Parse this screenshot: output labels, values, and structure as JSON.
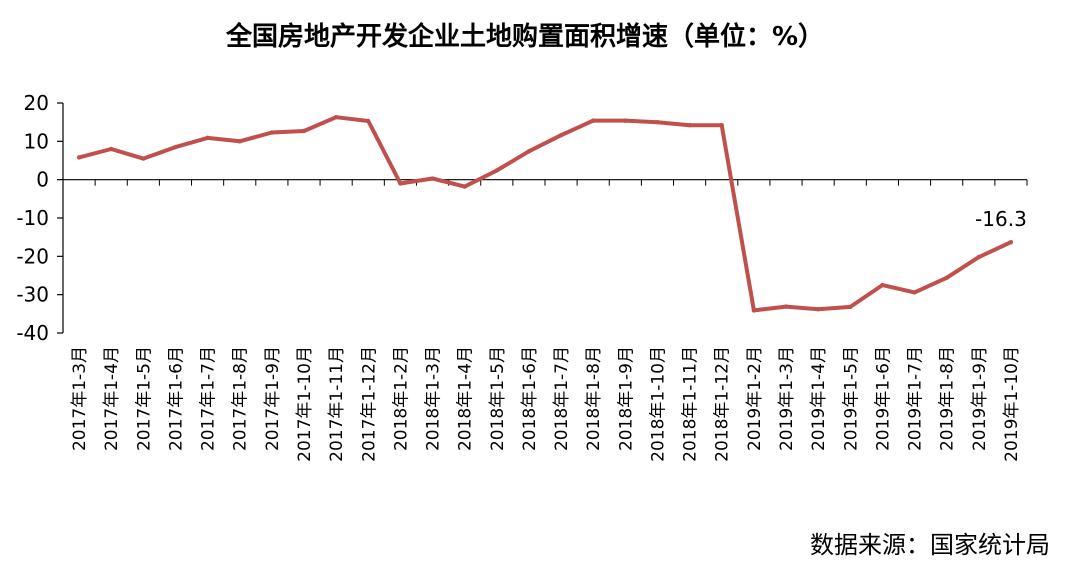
{
  "chart_data": {
    "type": "line",
    "title": "全国房地产开发企业土地购置面积增速（单位：%）",
    "xlabel": "",
    "ylabel": "",
    "ylim": [
      -40,
      20
    ],
    "yticks": [
      "20",
      "10",
      "0",
      "-10",
      "-20",
      "-30",
      "-40"
    ],
    "grid": false,
    "legend": "none",
    "categories": [
      "2017年1-3月",
      "2017年1-4月",
      "2017年1-5月",
      "2017年1-6月",
      "2017年1-7月",
      "2017年1-8月",
      "2017年1-9月",
      "2017年1-10月",
      "2017年1-11月",
      "2017年1-12月",
      "2018年1-2月",
      "2018年1-3月",
      "2018年1-4月",
      "2018年1-5月",
      "2018年1-6月",
      "2018年1-7月",
      "2018年1-8月",
      "2018年1-9月",
      "2018年1-10月",
      "2018年1-11月",
      "2018年1-12月",
      "2019年1-2月",
      "2019年1-3月",
      "2019年1-4月",
      "2019年1-5月",
      "2019年1-6月",
      "2019年1-7月",
      "2019年1-8月",
      "2019年1-9月",
      "2019年1-10月"
    ],
    "series": [
      {
        "values": [
          5.8,
          8.0,
          5.5,
          8.5,
          10.9,
          10.0,
          12.3,
          12.7,
          16.3,
          15.3,
          -1.0,
          0.3,
          -1.8,
          2.4,
          7.4,
          11.6,
          15.4,
          15.4,
          15.0,
          14.2,
          14.2,
          -34.1,
          -33.1,
          -33.8,
          -33.2,
          -27.5,
          -29.4,
          -25.6,
          -20.2,
          -16.3
        ],
        "color": "#c0504d"
      }
    ],
    "annotations": [
      {
        "label": "-16.3",
        "category": "2019年1-10月"
      }
    ],
    "source": "数据来源：国家统计局"
  }
}
